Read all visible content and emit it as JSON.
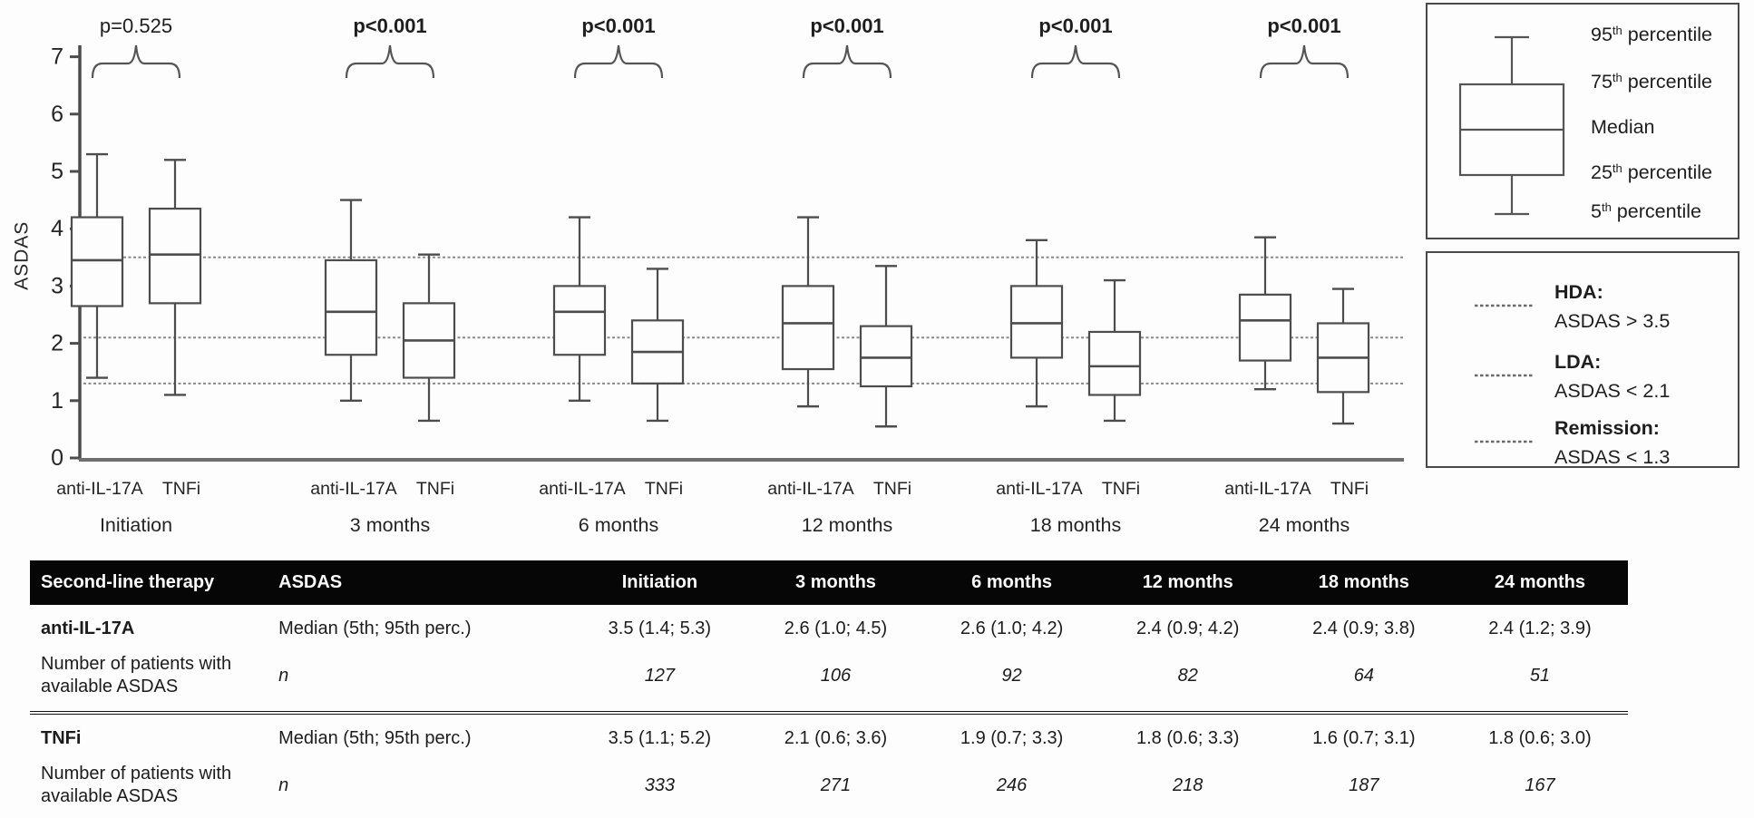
{
  "figure": {
    "background": "#fdfdfd",
    "text_color": "#222222",
    "line_color": "#4d4d4d",
    "ref_line_color": "#8a8a8a"
  },
  "chart_data": {
    "type": "boxplot",
    "ylabel": "ASDAS",
    "ylim": [
      0,
      7
    ],
    "yticks": [
      0,
      1,
      2,
      3,
      4,
      5,
      6,
      7
    ],
    "series": [
      "anti-IL-17A",
      "TNFi"
    ],
    "grid": false,
    "reference_lines": [
      {
        "name": "HDA",
        "value": 3.5
      },
      {
        "name": "LDA",
        "value": 2.1
      },
      {
        "name": "Remission",
        "value": 1.3
      }
    ],
    "groups": [
      {
        "label": "Initiation",
        "p": "p=0.525",
        "p_bold": false,
        "boxes": [
          {
            "series": "anti-IL-17A",
            "p5": 1.4,
            "q1": 2.65,
            "median": 3.45,
            "q3": 4.2,
            "p95": 5.3
          },
          {
            "series": "TNFi",
            "p5": 1.1,
            "q1": 2.7,
            "median": 3.55,
            "q3": 4.35,
            "p95": 5.2
          }
        ]
      },
      {
        "label": "3 months",
        "p": "p<0.001",
        "p_bold": true,
        "boxes": [
          {
            "series": "anti-IL-17A",
            "p5": 1.0,
            "q1": 1.8,
            "median": 2.55,
            "q3": 3.45,
            "p95": 4.5
          },
          {
            "series": "TNFi",
            "p5": 0.65,
            "q1": 1.4,
            "median": 2.05,
            "q3": 2.7,
            "p95": 3.55
          }
        ]
      },
      {
        "label": "6 months",
        "p": "p<0.001",
        "p_bold": true,
        "boxes": [
          {
            "series": "anti-IL-17A",
            "p5": 1.0,
            "q1": 1.8,
            "median": 2.55,
            "q3": 3.0,
            "p95": 4.2
          },
          {
            "series": "TNFi",
            "p5": 0.65,
            "q1": 1.3,
            "median": 1.85,
            "q3": 2.4,
            "p95": 3.3
          }
        ]
      },
      {
        "label": "12 months",
        "p": "p<0.001",
        "p_bold": true,
        "boxes": [
          {
            "series": "anti-IL-17A",
            "p5": 0.9,
            "q1": 1.55,
            "median": 2.35,
            "q3": 3.0,
            "p95": 4.2
          },
          {
            "series": "TNFi",
            "p5": 0.55,
            "q1": 1.25,
            "median": 1.75,
            "q3": 2.3,
            "p95": 3.35
          }
        ]
      },
      {
        "label": "18 months",
        "p": "p<0.001",
        "p_bold": true,
        "boxes": [
          {
            "series": "anti-IL-17A",
            "p5": 0.9,
            "q1": 1.75,
            "median": 2.35,
            "q3": 3.0,
            "p95": 3.8
          },
          {
            "series": "TNFi",
            "p5": 0.65,
            "q1": 1.1,
            "median": 1.6,
            "q3": 2.2,
            "p95": 3.1
          }
        ]
      },
      {
        "label": "24 months",
        "p": "p<0.001",
        "p_bold": true,
        "boxes": [
          {
            "series": "anti-IL-17A",
            "p5": 1.2,
            "q1": 1.7,
            "median": 2.4,
            "q3": 2.85,
            "p95": 3.85
          },
          {
            "series": "TNFi",
            "p5": 0.6,
            "q1": 1.15,
            "median": 1.75,
            "q3": 2.35,
            "p95": 2.95
          }
        ]
      }
    ]
  },
  "legend_percentiles": {
    "items": [
      {
        "base": "95",
        "sup": "th",
        "rest": " percentile"
      },
      {
        "base": "75",
        "sup": "th",
        "rest": " percentile"
      },
      {
        "base": "Median",
        "sup": "",
        "rest": ""
      },
      {
        "base": "25",
        "sup": "th",
        "rest": " percentile"
      },
      {
        "base": "5",
        "sup": "th",
        "rest": " percentile"
      }
    ]
  },
  "legend_thresholds": {
    "items": [
      {
        "title": "HDA:",
        "desc": "ASDAS > 3.5"
      },
      {
        "title": "LDA:",
        "desc": "ASDAS < 2.1"
      },
      {
        "title": "Remission:",
        "desc": "ASDAS < 1.3"
      }
    ]
  },
  "table": {
    "headers": [
      "Second-line therapy",
      "ASDAS",
      "Initiation",
      "3 months",
      "6 months",
      "12 months",
      "18 months",
      "24 months"
    ],
    "sections": [
      {
        "rows": [
          {
            "therapy": "anti-IL-17A",
            "therapy_bold": true,
            "measure": "Median (5th; 95th perc.)",
            "measure_italic": false,
            "values_italic": false,
            "values": [
              "3.5 (1.4; 5.3)",
              "2.6 (1.0; 4.5)",
              "2.6 (1.0; 4.2)",
              "2.4 (0.9; 4.2)",
              "2.4 (0.9; 3.8)",
              "2.4 (1.2; 3.9)"
            ]
          },
          {
            "therapy": "Number of patients with available ASDAS",
            "therapy_bold": false,
            "measure": "n",
            "measure_italic": true,
            "values_italic": true,
            "values": [
              "127",
              "106",
              "92",
              "82",
              "64",
              "51"
            ]
          }
        ]
      },
      {
        "rows": [
          {
            "therapy": "TNFi",
            "therapy_bold": true,
            "measure": "Median (5th; 95th perc.)",
            "measure_italic": false,
            "values_italic": false,
            "values": [
              "3.5 (1.1; 5.2)",
              "2.1 (0.6; 3.6)",
              "1.9 (0.7; 3.3)",
              "1.8 (0.6; 3.3)",
              "1.6 (0.7; 3.1)",
              "1.8 (0.6; 3.0)"
            ]
          },
          {
            "therapy": "Number of patients with available ASDAS",
            "therapy_bold": false,
            "measure": "n",
            "measure_italic": true,
            "values_italic": true,
            "values": [
              "333",
              "271",
              "246",
              "218",
              "187",
              "167"
            ]
          }
        ]
      }
    ]
  }
}
